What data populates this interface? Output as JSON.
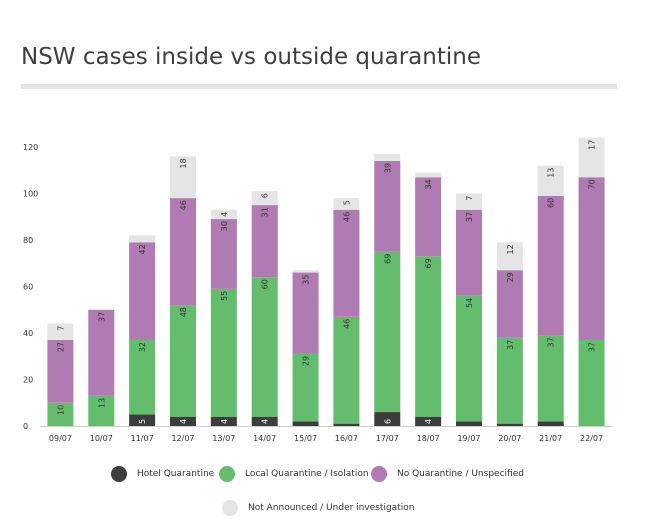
{
  "title": "NSW cases inside vs outside quarantine",
  "colors": {
    "hotel": "#3d3d3d",
    "local": "#64bd6d",
    "none": "#b07ab3",
    "not_announced": "#e5e5e5",
    "axis_text": "#333333"
  },
  "chart_data": {
    "type": "bar",
    "stacked": true,
    "categories": [
      "09/07",
      "10/07",
      "11/07",
      "12/07",
      "13/07",
      "14/07",
      "15/07",
      "16/07",
      "17/07",
      "18/07",
      "19/07",
      "20/07",
      "21/07",
      "22/07"
    ],
    "ylim": [
      0,
      125
    ],
    "yticks": [
      0,
      20,
      40,
      60,
      80,
      100,
      120
    ],
    "grid": false,
    "legend_position": "bottom",
    "series": [
      {
        "name": "Hotel Quarantine",
        "key": "hotel",
        "values": [
          0,
          0,
          5,
          4,
          4,
          4,
          2,
          1,
          6,
          4,
          2,
          1,
          2,
          0
        ],
        "labels": [
          "",
          "",
          "5",
          "4",
          "4",
          "4",
          "",
          "",
          "6",
          "4",
          "",
          "",
          "",
          ""
        ]
      },
      {
        "name": "Local Quarantine / Isolation",
        "key": "local",
        "values": [
          10,
          13,
          32,
          48,
          55,
          60,
          29,
          46,
          69,
          69,
          54,
          37,
          37,
          37
        ],
        "labels": [
          "10",
          "13",
          "32",
          "48",
          "55",
          "60",
          "29",
          "46",
          "69",
          "69",
          "54",
          "37",
          "37",
          "37"
        ]
      },
      {
        "name": "No Quarantine / Unspecified",
        "key": "none",
        "values": [
          27,
          37,
          42,
          46,
          30,
          31,
          35,
          46,
          39,
          34,
          37,
          29,
          60,
          70
        ],
        "labels": [
          "27",
          "37",
          "42",
          "46",
          "30",
          "31",
          "35",
          "46",
          "39",
          "34",
          "37",
          "29",
          "60",
          "70"
        ]
      },
      {
        "name": "Not Announced / Under investigation",
        "key": "not_announced",
        "values": [
          7,
          0,
          3,
          18,
          4,
          6,
          1,
          5,
          3,
          2,
          7,
          12,
          13,
          17
        ],
        "labels": [
          "7",
          "",
          "",
          "18",
          "4",
          "6",
          "",
          "5",
          "",
          "",
          "7",
          "12",
          "13",
          "17"
        ]
      }
    ]
  }
}
